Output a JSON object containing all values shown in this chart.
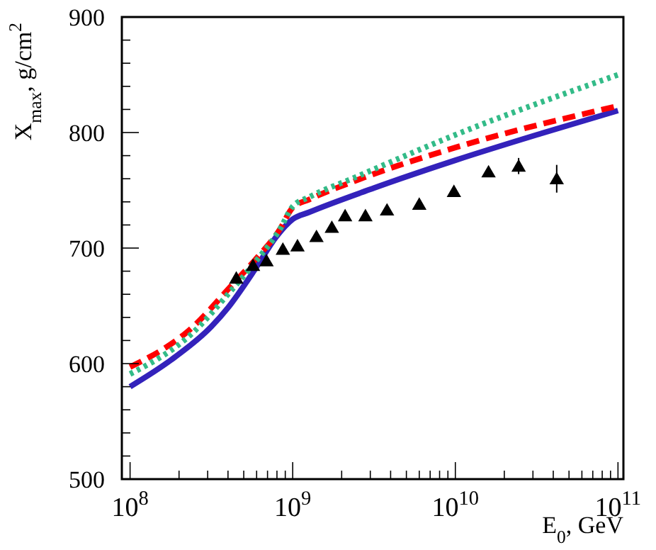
{
  "chart_data": {
    "type": "line",
    "xlabel": "E$_{0}$, GeV",
    "ylabel": "X$_{max}$, g/cm$^{2}$",
    "log": "x",
    "xlim": [
      89000000.0,
      108000000000.0
    ],
    "ylim": [
      500,
      900
    ],
    "xticks": [
      {
        "value": 100000000.0,
        "label": "10$^{8}$"
      },
      {
        "value": 200000000.0,
        "label": null
      },
      {
        "value": 300000000.0,
        "label": null
      },
      {
        "value": 400000000.0,
        "label": null
      },
      {
        "value": 500000000.0,
        "label": null
      },
      {
        "value": 600000000.0,
        "label": null
      },
      {
        "value": 700000000.0,
        "label": null
      },
      {
        "value": 800000000.0,
        "label": null
      },
      {
        "value": 900000000.0,
        "label": null
      },
      {
        "value": 1000000000.0,
        "label": "10$^{9}$"
      },
      {
        "value": 2000000000.0,
        "label": null
      },
      {
        "value": 3000000000.0,
        "label": null
      },
      {
        "value": 4000000000.0,
        "label": null
      },
      {
        "value": 5000000000.0,
        "label": null
      },
      {
        "value": 6000000000.0,
        "label": null
      },
      {
        "value": 7000000000.0,
        "label": null
      },
      {
        "value": 8000000000.0,
        "label": null
      },
      {
        "value": 9000000000.0,
        "label": null
      },
      {
        "value": 10000000000.0,
        "label": "10$^{10}$"
      },
      {
        "value": 20000000000.0,
        "label": null
      },
      {
        "value": 30000000000.0,
        "label": null
      },
      {
        "value": 40000000000.0,
        "label": null
      },
      {
        "value": 50000000000.0,
        "label": null
      },
      {
        "value": 60000000000.0,
        "label": null
      },
      {
        "value": 70000000000.0,
        "label": null
      },
      {
        "value": 80000000000.0,
        "label": null
      },
      {
        "value": 90000000000.0,
        "label": null
      },
      {
        "value": 100000000000.0,
        "label": "10$^{11}$"
      }
    ],
    "yticks": [
      500,
      {
        "value": 520,
        "label": null
      },
      {
        "value": 540,
        "label": null
      },
      {
        "value": 560,
        "label": null
      },
      {
        "value": 580,
        "label": null
      },
      600,
      {
        "value": 620,
        "label": null
      },
      {
        "value": 640,
        "label": null
      },
      {
        "value": 660,
        "label": null
      },
      {
        "value": 680,
        "label": null
      },
      700,
      {
        "value": 720,
        "label": null
      },
      {
        "value": 740,
        "label": null
      },
      {
        "value": 760,
        "label": null
      },
      {
        "value": 780,
        "label": null
      },
      800,
      {
        "value": 820,
        "label": null
      },
      {
        "value": 840,
        "label": null
      },
      {
        "value": 860,
        "label": null
      },
      {
        "value": 880,
        "label": null
      },
      900
    ],
    "series": [
      {
        "color": "#3322bb",
        "line_style": "solid",
        "x": [
          100000000.0,
          178000000.0,
          316000000.0,
          398000000.0,
          589000000.0,
          794000000.0,
          1000000000.0,
          1260000000.0,
          3160000000.0,
          10000000000.0,
          31600000000.0,
          100000000000.0
        ],
        "values": [
          580,
          603,
          632,
          648,
          682,
          710,
          725,
          731,
          752,
          776,
          798,
          819
        ]
      },
      {
        "color": "#ff0000",
        "line_style": "dashed",
        "x": [
          100000000.0,
          240000000.0,
          417000000.0,
          589000000.0,
          832000000.0,
          1000000000.0,
          1260000000.0,
          2400000000.0,
          10000000000.0,
          100000000000.0
        ],
        "values": [
          597,
          631,
          667,
          690,
          716,
          735,
          742,
          758,
          787,
          823
        ]
      },
      {
        "color": "#33bb88",
        "line_style": "dotted",
        "x": [
          100000000.0,
          240000000.0,
          417000000.0,
          589000000.0,
          832000000.0,
          1000000000.0,
          1260000000.0,
          2400000000.0,
          10000000000.0,
          100000000000.0
        ],
        "values": [
          591,
          626,
          663,
          688,
          716,
          736,
          744,
          761,
          798,
          850
        ]
      },
      {
        "type": "scatter",
        "color": "#000000",
        "marker": "triangle",
        "x": [
          450000000.0,
          570000000.0,
          690000000.0,
          870000000.0,
          1070000000.0,
          1400000000.0,
          1740000000.0,
          2100000000.0,
          2800000000.0,
          3800000000.0,
          6000000000.0,
          9800000000.0,
          16000000000.0,
          24500000000.0,
          42000000000.0
        ],
        "values": [
          674,
          685,
          689,
          699,
          702,
          710,
          718,
          728,
          728,
          733,
          738,
          749,
          766,
          771,
          760
        ],
        "errors": [
          null,
          null,
          null,
          null,
          null,
          null,
          null,
          null,
          null,
          null,
          null,
          null,
          null,
          7,
          12
        ]
      }
    ]
  }
}
